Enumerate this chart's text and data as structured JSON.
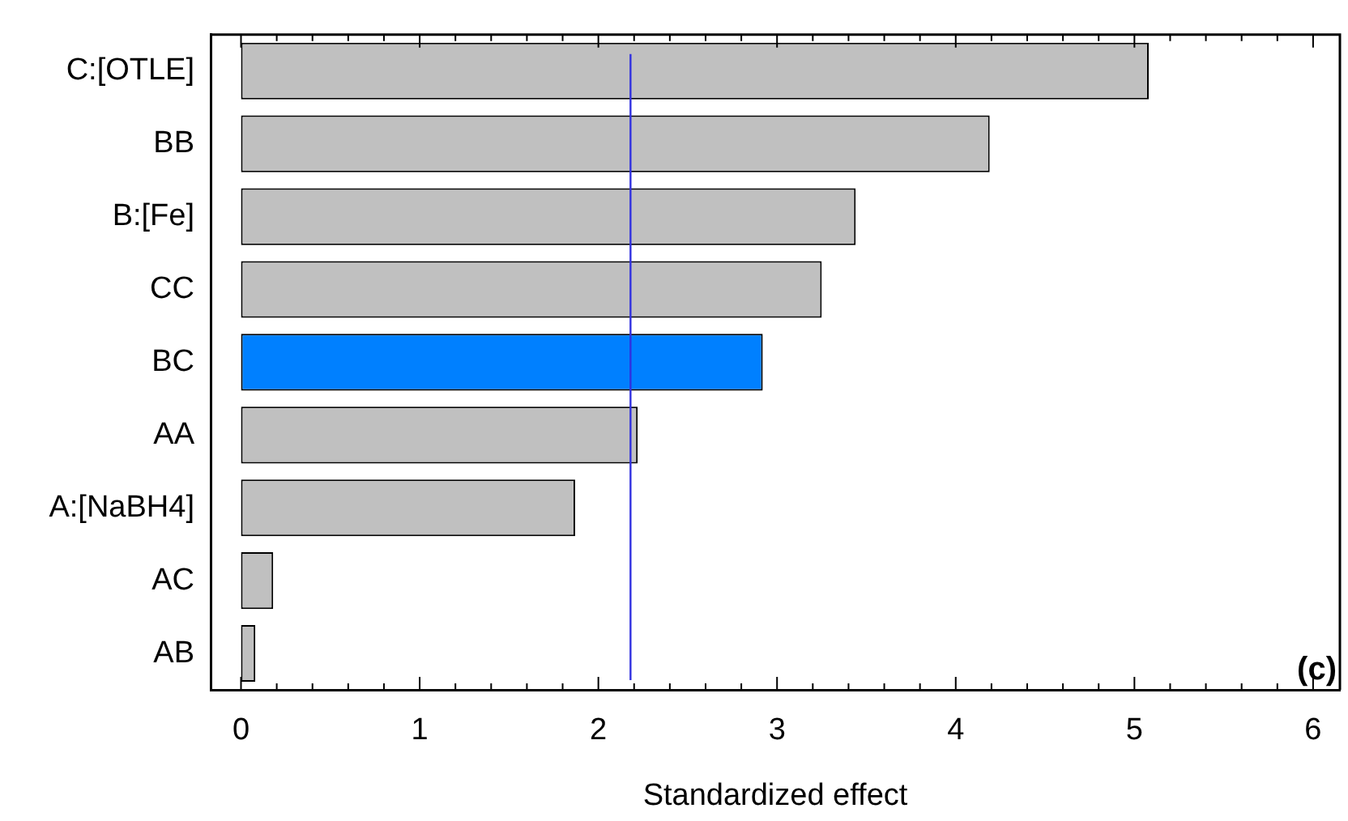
{
  "chart_data": {
    "type": "bar",
    "orientation": "horizontal",
    "xlabel": "Standardized effect",
    "categories": [
      "C:[OTLE]",
      "BB",
      "B:[Fe]",
      "CC",
      "BC",
      "AA",
      "A:[NaBH4]",
      "AC",
      "AB"
    ],
    "values": [
      5.08,
      4.19,
      3.44,
      3.25,
      2.92,
      2.22,
      1.87,
      0.18,
      0.08
    ],
    "colors": [
      "#c0c0c0",
      "#c0c0c0",
      "#c0c0c0",
      "#c0c0c0",
      "#0080ff",
      "#c0c0c0",
      "#c0c0c0",
      "#c0c0c0",
      "#c0c0c0"
    ],
    "xlim": [
      -0.17,
      6.15
    ],
    "xticks": [
      0,
      {
        "value": 0.2,
        "label": null
      },
      {
        "value": 0.4,
        "label": null
      },
      {
        "value": 0.6,
        "label": null
      },
      {
        "value": 0.8,
        "label": null
      },
      1,
      {
        "value": 1.2,
        "label": null
      },
      {
        "value": 1.4,
        "label": null
      },
      {
        "value": 1.6,
        "label": null
      },
      {
        "value": 1.8,
        "label": null
      },
      2,
      {
        "value": 2.2,
        "label": null
      },
      {
        "value": 2.4,
        "label": null
      },
      {
        "value": 2.6,
        "label": null
      },
      {
        "value": 2.8,
        "label": null
      },
      3,
      {
        "value": 3.2,
        "label": null
      },
      {
        "value": 3.4,
        "label": null
      },
      {
        "value": 3.6,
        "label": null
      },
      {
        "value": 3.8,
        "label": null
      },
      4,
      {
        "value": 4.2,
        "label": null
      },
      {
        "value": 4.4,
        "label": null
      },
      {
        "value": 4.6,
        "label": null
      },
      {
        "value": 4.8,
        "label": null
      },
      5,
      {
        "value": 5.2,
        "label": null
      },
      {
        "value": 5.4,
        "label": null
      },
      {
        "value": 5.6,
        "label": null
      },
      {
        "value": 5.8,
        "label": null
      },
      6
    ],
    "ref_lines": [
      {
        "axis": "x",
        "value": 2.18,
        "color": "#3030e0"
      }
    ],
    "annotations": [
      "(c)"
    ],
    "grid": false,
    "legend": false
  }
}
